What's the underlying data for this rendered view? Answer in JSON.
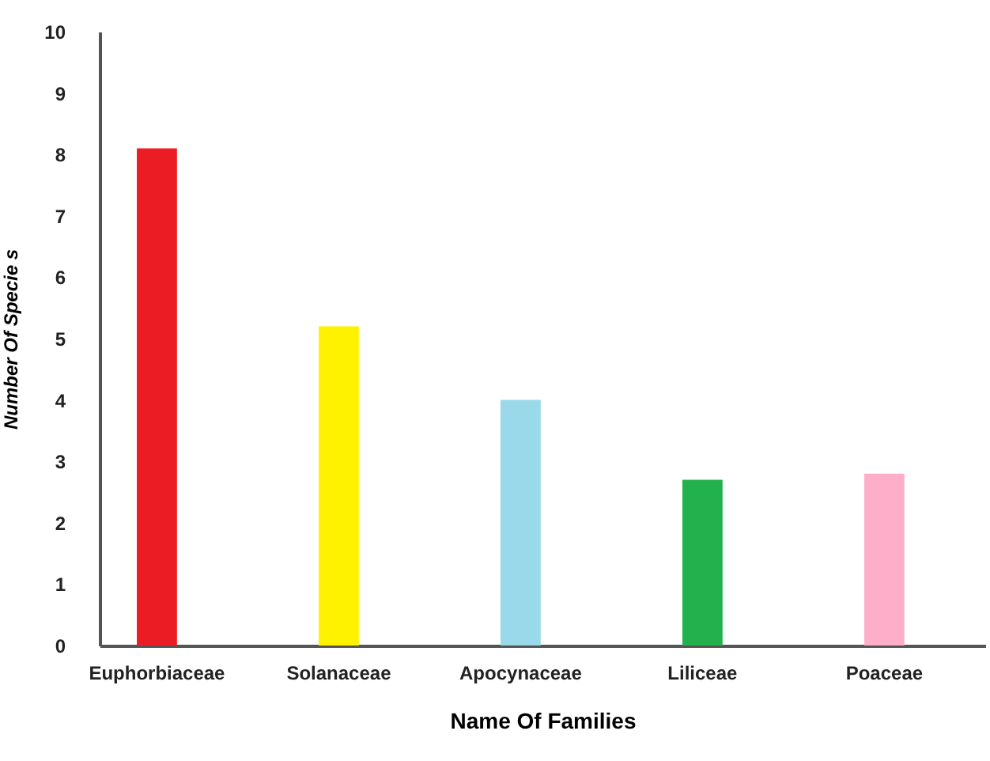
{
  "chart_data": {
    "type": "bar",
    "xlabel": "Name Of Families",
    "ylabel": "Number Of Specie s",
    "categories": [
      "Euphorbiaceae",
      "Solanaceae",
      "Apocynaceae",
      "Liliceae",
      "Poaceae"
    ],
    "values": [
      8.1,
      5.2,
      4,
      2.7,
      2.8
    ],
    "colors": [
      "#ec1c24",
      "#fff200",
      "#99d9ea",
      "#22b14c",
      "#ffaec9"
    ],
    "ylim": [
      0,
      10
    ],
    "yticks": [
      0,
      1,
      2,
      3,
      4,
      5,
      6,
      7,
      8,
      9,
      10
    ],
    "grid": false
  }
}
